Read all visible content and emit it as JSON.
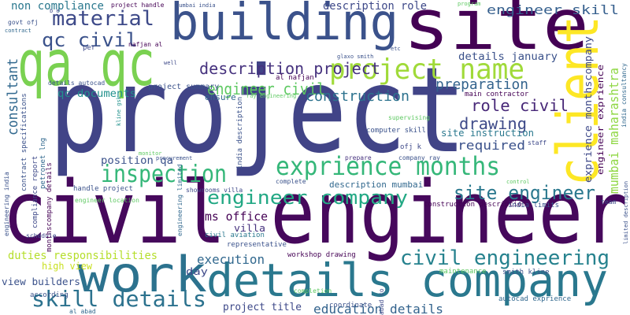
{
  "words": [
    {
      "text": "project",
      "color": "#414487"
    },
    {
      "text": "civil engineer",
      "color": "#46085c"
    },
    {
      "text": "site",
      "color": "#440154"
    },
    {
      "text": "building",
      "color": "#3b528b"
    },
    {
      "text": "qa qc",
      "color": "#7ad151"
    },
    {
      "text": "details company",
      "color": "#2a788e"
    },
    {
      "text": "work",
      "color": "#2c728e"
    },
    {
      "text": "client",
      "color": "#fde725"
    },
    {
      "text": "exprience months",
      "color": "#35b779"
    },
    {
      "text": "project name",
      "color": "#a0da39"
    },
    {
      "text": "inspection",
      "color": "#35b779"
    },
    {
      "text": "engineer company",
      "color": "#22a884"
    },
    {
      "text": "site engineer",
      "color": "#2a788e"
    },
    {
      "text": "civil engineering",
      "color": "#26828e"
    },
    {
      "text": "skill details",
      "color": "#2c728e"
    },
    {
      "text": "material",
      "color": "#3e4a89"
    },
    {
      "text": "qc civil",
      "color": "#3b528b"
    },
    {
      "text": "description project",
      "color": "#46327e"
    },
    {
      "text": "engineer civil",
      "color": "#5ec962"
    },
    {
      "text": "description role",
      "color": "#3e4989"
    },
    {
      "text": "engineer skill",
      "color": "#355f8d"
    },
    {
      "text": "non compliance",
      "color": "#2a788e"
    },
    {
      "text": "consultant",
      "color": "#31688e"
    },
    {
      "text": "preparation",
      "color": "#33638d"
    },
    {
      "text": "construction",
      "color": "#2c728e"
    },
    {
      "text": "role civil",
      "color": "#482878"
    },
    {
      "text": "drawing",
      "color": "#3e4a89"
    },
    {
      "text": "required",
      "color": "#3b528b"
    },
    {
      "text": "details january",
      "color": "#3b528b"
    },
    {
      "text": "mumbai maharashtra",
      "color": "#8fd744"
    },
    {
      "text": "exprience monthscompany",
      "color": "#3e4989"
    },
    {
      "text": "engineer exprience",
      "color": "#440154"
    },
    {
      "text": "india consultancy",
      "color": "#31688e"
    },
    {
      "text": "qc documents",
      "color": "#21918c"
    },
    {
      "text": "position qa",
      "color": "#3b528b"
    },
    {
      "text": "ms office",
      "color": "#440154"
    },
    {
      "text": "villa",
      "color": "#46327e"
    },
    {
      "text": "execution",
      "color": "#31688e"
    },
    {
      "text": "duties responsibilities",
      "color": "#b5de2b"
    },
    {
      "text": "high view",
      "color": "#c8e020"
    },
    {
      "text": "view builders",
      "color": "#3b528b"
    },
    {
      "text": "day",
      "color": "#3e4989"
    },
    {
      "text": "project title",
      "color": "#3e4989"
    },
    {
      "text": "education details",
      "color": "#33638d"
    },
    {
      "text": "ensure",
      "color": "#31688e"
    },
    {
      "text": "project summary",
      "color": "#3b528b"
    },
    {
      "text": "site instruction",
      "color": "#2a788e"
    },
    {
      "text": "computer skill",
      "color": "#3b528b"
    },
    {
      "text": "supervising",
      "color": "#5ec962"
    },
    {
      "text": "main contractor",
      "color": "#440154"
    },
    {
      "text": "ofj k",
      "color": "#3e4989"
    },
    {
      "text": "company ray",
      "color": "#3b528b"
    },
    {
      "text": "prepare",
      "color": "#46327e"
    },
    {
      "text": "complete",
      "color": "#3b528b"
    },
    {
      "text": "description mumbai",
      "color": "#31688e"
    },
    {
      "text": "construction description",
      "color": "#440154"
    },
    {
      "text": "india limits",
      "color": "#3b528b"
    },
    {
      "text": "team",
      "color": "#3e4989"
    },
    {
      "text": "limited description",
      "color": "#3b528b"
    },
    {
      "text": "maintenance",
      "color": "#5ec962"
    },
    {
      "text": "smith kline",
      "color": "#3b528b"
    },
    {
      "text": "autocad exprience",
      "color": "#31688e"
    },
    {
      "text": "abad co",
      "color": "#3e4989"
    },
    {
      "text": "coordinate",
      "color": "#3b528b"
    },
    {
      "text": "completion",
      "color": "#5ec962"
    },
    {
      "text": "workshop drawing",
      "color": "#440154"
    },
    {
      "text": "representative",
      "color": "#3b528b"
    },
    {
      "text": "civil aviation",
      "color": "#2a788e"
    },
    {
      "text": "showrooms villa",
      "color": "#3e4989"
    },
    {
      "text": "handle project",
      "color": "#3b528b"
    },
    {
      "text": "engineer location",
      "color": "#5ec962"
    },
    {
      "text": "schedule",
      "color": "#3e4989"
    },
    {
      "text": "according",
      "color": "#3b528b"
    },
    {
      "text": "al abad",
      "color": "#31688e"
    },
    {
      "text": "procurement",
      "color": "#3b528b"
    },
    {
      "text": "monitor",
      "color": "#5ec962"
    },
    {
      "text": "kline gsk",
      "color": "#21918c"
    },
    {
      "text": "petronet lng",
      "color": "#31688e"
    },
    {
      "text": "contract specifications",
      "color": "#3b528b"
    },
    {
      "text": "compliance report",
      "color": "#3e4989"
    },
    {
      "text": "monthscompany details",
      "color": "#440154"
    },
    {
      "text": "engineering india",
      "color": "#3b528b"
    },
    {
      "text": "engineering limited",
      "color": "#31688e"
    },
    {
      "text": "india description",
      "color": "#3b528b"
    },
    {
      "text": "staff",
      "color": "#3e4989"
    },
    {
      "text": "control",
      "color": "#5ec962"
    },
    {
      "text": "program",
      "color": "#5ec962"
    },
    {
      "text": "mumbai india",
      "color": "#3b528b"
    },
    {
      "text": "project handle",
      "color": "#440154"
    },
    {
      "text": "b e",
      "color": "#3e4989"
    },
    {
      "text": "govt ofj",
      "color": "#3b528b"
    },
    {
      "text": "contract",
      "color": "#31688e"
    },
    {
      "text": "nafjan al",
      "color": "#440154"
    },
    {
      "text": "per",
      "color": "#3e4989"
    },
    {
      "text": "etc",
      "color": "#3b528b"
    },
    {
      "text": "glaxo smith",
      "color": "#3b528b"
    },
    {
      "text": "al nafjan",
      "color": "#440154"
    },
    {
      "text": "well",
      "color": "#3e4989"
    },
    {
      "text": "details autocad",
      "color": "#3b528b"
    },
    {
      "text": "ray engineering",
      "color": "#5ec962"
    }
  ]
}
